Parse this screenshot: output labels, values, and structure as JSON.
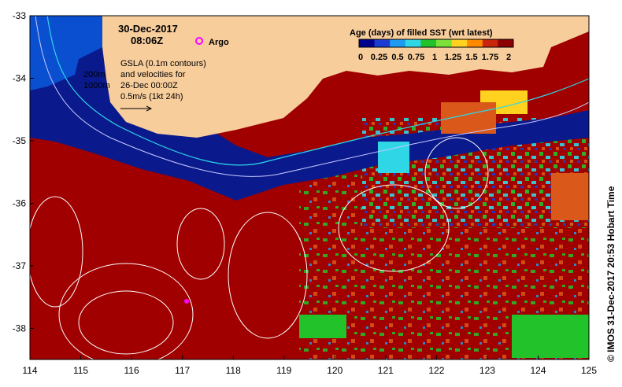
{
  "timestamp": {
    "date": "30-Dec-2017",
    "time": "08:06Z"
  },
  "argo_label": "Argo",
  "gsla_note": [
    "GSLA (0.1m contours)",
    "and velocities for",
    "26-Dec 00:00Z",
    "0.5m/s (1kt 24h)"
  ],
  "isobath_labels": [
    "200m",
    "1000m"
  ],
  "legend": {
    "title": "Age (days) of filled SST (wrt latest)",
    "tick_labels": [
      "0",
      "0.25",
      "0.5",
      "0.75",
      "1",
      "1.25",
      "1.5",
      "1.75",
      "2"
    ],
    "colors": [
      "#00008b",
      "#1c3bd0",
      "#1e9bf0",
      "#2fd6e6",
      "#22c22b",
      "#7be03a",
      "#ffd21f",
      "#ff8a00",
      "#c8250a",
      "#8b0000"
    ]
  },
  "axes": {
    "x_ticks": [
      "114",
      "115",
      "116",
      "117",
      "118",
      "119",
      "120",
      "121",
      "122",
      "123",
      "124",
      "125"
    ],
    "y_ticks": [
      "-33",
      "-34",
      "-35",
      "-36",
      "-37",
      "-38"
    ]
  },
  "credit": "© IMOS 31-Dec-2017 20:53 Hobart Time",
  "colors": {
    "land": "#f8cd9c",
    "dark_red": "#a00000",
    "navy": "#0a1a8c",
    "shelf_blue": "#0a4fd0",
    "contour": "#ffffff",
    "argo": "#ff00ff"
  }
}
